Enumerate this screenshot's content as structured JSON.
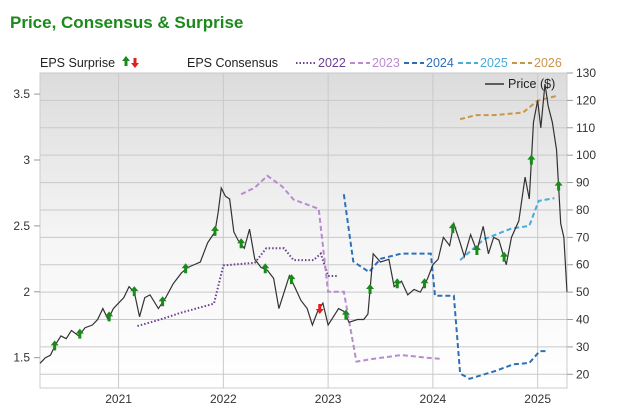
{
  "chart_data": {
    "type": "line",
    "title": "Price, Consensus & Surprise",
    "legend": {
      "surprise_label": "EPS Surprise",
      "consensus_label": "EPS Consensus",
      "price_label": "Price ($)",
      "placement": "top"
    },
    "x_ticks": [
      "2021",
      "2022",
      "2023",
      "2024",
      "2025"
    ],
    "x_tick_values": [
      2021,
      2022,
      2023,
      2024,
      2025
    ],
    "xlim": [
      2020.25,
      2025.28
    ],
    "left_axis": {
      "ticks": [
        "1.5",
        "2",
        "2.5",
        "3",
        "3.5"
      ],
      "ylim": [
        1.27,
        3.66
      ]
    },
    "right_axis": {
      "ticks": [
        "20",
        "30",
        "40",
        "50",
        "60",
        "70",
        "80",
        "90",
        "100",
        "110",
        "120",
        "130"
      ],
      "ylim": [
        15,
        130
      ]
    },
    "grid": true,
    "colors": {
      "price": "#333333",
      "2022": "#6b3f8f",
      "2023": "#b88ad0",
      "2024": "#2f6fb8",
      "2025": "#4aaad8",
      "2026": "#c8954a",
      "up": "#1a8a1a",
      "down": "#e02020"
    },
    "price": [
      [
        2020.25,
        24
      ],
      [
        2020.3,
        26
      ],
      [
        2020.35,
        27
      ],
      [
        2020.4,
        31
      ],
      [
        2020.45,
        34
      ],
      [
        2020.5,
        33
      ],
      [
        2020.55,
        36
      ],
      [
        2020.62,
        34
      ],
      [
        2020.68,
        37
      ],
      [
        2020.75,
        38
      ],
      [
        2020.8,
        40
      ],
      [
        2020.85,
        44
      ],
      [
        2020.9,
        40
      ],
      [
        2020.95,
        44
      ],
      [
        2021.0,
        46
      ],
      [
        2021.05,
        48
      ],
      [
        2021.1,
        52
      ],
      [
        2021.15,
        50
      ],
      [
        2021.2,
        41
      ],
      [
        2021.25,
        48
      ],
      [
        2021.3,
        49
      ],
      [
        2021.38,
        44
      ],
      [
        2021.45,
        48
      ],
      [
        2021.52,
        53
      ],
      [
        2021.6,
        57
      ],
      [
        2021.66,
        59
      ],
      [
        2021.72,
        60
      ],
      [
        2021.78,
        61
      ],
      [
        2021.85,
        68
      ],
      [
        2021.92,
        72
      ],
      [
        2021.95,
        79
      ],
      [
        2021.98,
        88
      ],
      [
        2022.02,
        85
      ],
      [
        2022.06,
        84
      ],
      [
        2022.1,
        72
      ],
      [
        2022.14,
        69
      ],
      [
        2022.2,
        66
      ],
      [
        2022.25,
        73
      ],
      [
        2022.3,
        62
      ],
      [
        2022.36,
        59
      ],
      [
        2022.42,
        58
      ],
      [
        2022.48,
        55
      ],
      [
        2022.53,
        44
      ],
      [
        2022.58,
        50
      ],
      [
        2022.63,
        56
      ],
      [
        2022.68,
        52
      ],
      [
        2022.74,
        47
      ],
      [
        2022.8,
        44
      ],
      [
        2022.85,
        38
      ],
      [
        2022.9,
        43
      ],
      [
        2022.95,
        46
      ],
      [
        2023.0,
        38
      ],
      [
        2023.05,
        41
      ],
      [
        2023.1,
        44
      ],
      [
        2023.15,
        43
      ],
      [
        2023.2,
        39
      ],
      [
        2023.28,
        40
      ],
      [
        2023.34,
        40
      ],
      [
        2023.38,
        42
      ],
      [
        2023.43,
        64
      ],
      [
        2023.5,
        61
      ],
      [
        2023.58,
        62
      ],
      [
        2023.63,
        52
      ],
      [
        2023.7,
        54
      ],
      [
        2023.76,
        49
      ],
      [
        2023.82,
        51
      ],
      [
        2023.88,
        50
      ],
      [
        2023.95,
        55
      ],
      [
        2024.0,
        60
      ],
      [
        2024.05,
        62
      ],
      [
        2024.1,
        70
      ],
      [
        2024.16,
        67
      ],
      [
        2024.2,
        75
      ],
      [
        2024.26,
        68
      ],
      [
        2024.3,
        63
      ],
      [
        2024.36,
        71
      ],
      [
        2024.42,
        65
      ],
      [
        2024.48,
        74
      ],
      [
        2024.53,
        64
      ],
      [
        2024.58,
        70
      ],
      [
        2024.63,
        69
      ],
      [
        2024.7,
        60
      ],
      [
        2024.75,
        70
      ],
      [
        2024.82,
        76
      ],
      [
        2024.88,
        92
      ],
      [
        2024.92,
        84
      ],
      [
        2024.96,
        112
      ],
      [
        2025.0,
        120
      ],
      [
        2025.03,
        110
      ],
      [
        2025.07,
        126
      ],
      [
        2025.1,
        118
      ],
      [
        2025.14,
        112
      ],
      [
        2025.18,
        102
      ],
      [
        2025.22,
        75
      ],
      [
        2025.25,
        70
      ],
      [
        2025.28,
        50
      ]
    ],
    "consensus": [
      {
        "name": "2022",
        "style": "dotted",
        "values": [
          [
            2021.18,
            1.74
          ],
          [
            2021.4,
            1.79
          ],
          [
            2021.59,
            1.84
          ],
          [
            2021.91,
            1.91
          ],
          [
            2022.0,
            2.2
          ],
          [
            2022.3,
            2.22
          ],
          [
            2022.41,
            2.33
          ],
          [
            2022.58,
            2.33
          ],
          [
            2022.67,
            2.24
          ],
          [
            2022.86,
            2.24
          ],
          [
            2022.93,
            2.29
          ],
          [
            2023.0,
            2.12
          ],
          [
            2023.1,
            2.12
          ]
        ]
      },
      {
        "name": "2023",
        "style": "dashed",
        "values": [
          [
            2022.17,
            2.74
          ],
          [
            2022.3,
            2.79
          ],
          [
            2022.42,
            2.88
          ],
          [
            2022.56,
            2.8
          ],
          [
            2022.67,
            2.7
          ],
          [
            2022.91,
            2.63
          ],
          [
            2023.0,
            2.0
          ],
          [
            2023.15,
            2.0
          ],
          [
            2023.27,
            1.47
          ],
          [
            2023.42,
            1.49
          ],
          [
            2023.7,
            1.52
          ],
          [
            2023.94,
            1.5
          ],
          [
            2024.09,
            1.49
          ]
        ]
      },
      {
        "name": "2024",
        "style": "dashed",
        "values": [
          [
            2023.15,
            2.74
          ],
          [
            2023.24,
            2.23
          ],
          [
            2023.39,
            2.15
          ],
          [
            2023.5,
            2.25
          ],
          [
            2023.7,
            2.29
          ],
          [
            2023.98,
            2.29
          ],
          [
            2024.02,
            1.97
          ],
          [
            2024.2,
            1.97
          ],
          [
            2024.26,
            1.38
          ],
          [
            2024.35,
            1.34
          ],
          [
            2024.6,
            1.4
          ],
          [
            2024.77,
            1.45
          ],
          [
            2024.92,
            1.46
          ],
          [
            2025.02,
            1.55
          ],
          [
            2025.08,
            1.55
          ]
        ]
      },
      {
        "name": "2025",
        "style": "dashed",
        "values": [
          [
            2024.26,
            2.24
          ],
          [
            2024.49,
            2.4
          ],
          [
            2024.75,
            2.48
          ],
          [
            2024.92,
            2.5
          ],
          [
            2025.01,
            2.69
          ],
          [
            2025.16,
            2.71
          ]
        ]
      },
      {
        "name": "2026",
        "style": "dashed",
        "values": [
          [
            2024.26,
            3.31
          ],
          [
            2024.41,
            3.34
          ],
          [
            2024.58,
            3.34
          ],
          [
            2024.86,
            3.36
          ],
          [
            2025.0,
            3.45
          ],
          [
            2025.2,
            3.49
          ]
        ]
      }
    ],
    "surprises": [
      {
        "x": 2020.39,
        "dir": "up"
      },
      {
        "x": 2020.63,
        "dir": "up"
      },
      {
        "x": 2020.91,
        "dir": "up"
      },
      {
        "x": 2021.15,
        "dir": "up"
      },
      {
        "x": 2021.42,
        "dir": "up"
      },
      {
        "x": 2021.64,
        "dir": "up"
      },
      {
        "x": 2021.92,
        "dir": "up"
      },
      {
        "x": 2022.17,
        "dir": "up"
      },
      {
        "x": 2022.4,
        "dir": "up"
      },
      {
        "x": 2022.65,
        "dir": "up"
      },
      {
        "x": 2022.92,
        "dir": "down"
      },
      {
        "x": 2023.17,
        "dir": "up"
      },
      {
        "x": 2023.4,
        "dir": "up"
      },
      {
        "x": 2023.66,
        "dir": "up"
      },
      {
        "x": 2023.92,
        "dir": "up"
      },
      {
        "x": 2024.19,
        "dir": "up"
      },
      {
        "x": 2024.42,
        "dir": "up"
      },
      {
        "x": 2024.68,
        "dir": "up"
      },
      {
        "x": 2024.94,
        "dir": "up"
      },
      {
        "x": 2025.2,
        "dir": "up"
      }
    ]
  }
}
